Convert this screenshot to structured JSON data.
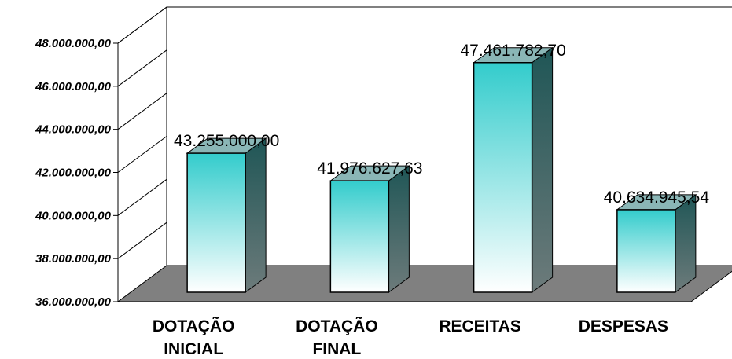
{
  "chart_data": {
    "type": "bar",
    "style": "3d-column",
    "title": "",
    "xlabel": "",
    "ylabel": "",
    "categories": [
      [
        "DOTAÇÃO",
        "INICIAL"
      ],
      [
        "DOTAÇÃO",
        "FINAL"
      ],
      [
        "RECEITAS"
      ],
      [
        "DESPESAS"
      ]
    ],
    "values": [
      43255000.0,
      41976627.63,
      47461782.7,
      40634945.54
    ],
    "value_labels": [
      "43.255.000,00",
      "41.976.627,63",
      "47.461.782,70",
      "40.634.945,54"
    ],
    "ylim": [
      36000000,
      48000000
    ],
    "yticks": [
      36000000,
      38000000,
      40000000,
      42000000,
      44000000,
      46000000,
      48000000
    ],
    "ytick_labels": [
      "36.000.000,00",
      "38.000.000,00",
      "40.000.000,00",
      "42.000.000,00",
      "44.000.000,00",
      "46.000.000,00",
      "48.000.000,00"
    ],
    "grid": false,
    "legend": "none",
    "colors": {
      "bar_top": "#33cccc",
      "bar_bottom": "#ffffff",
      "bar_side": "#2a6666",
      "bar_cap": "#8ab6b6",
      "floor": "#808080"
    }
  }
}
